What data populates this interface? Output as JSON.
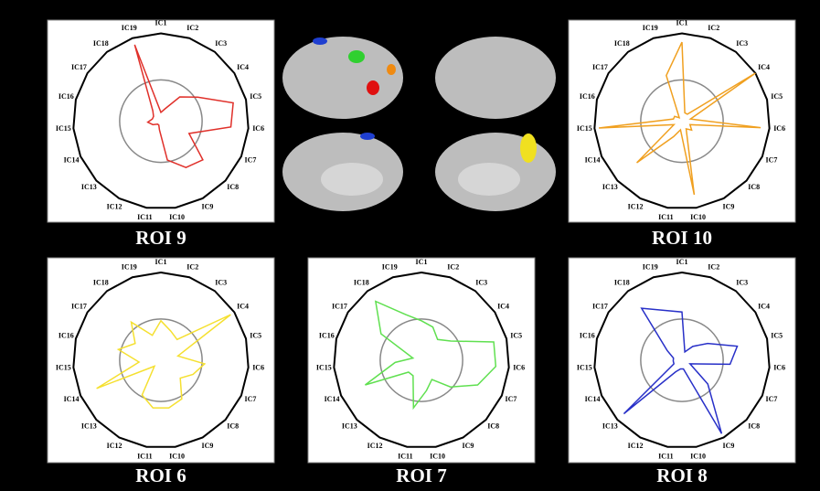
{
  "chart_data": [
    {
      "type": "radar",
      "title": "ROI 9",
      "color": "#e0302a",
      "rlim": [
        0,
        1
      ],
      "categories": [
        "IC1",
        "IC2",
        "IC3",
        "IC4",
        "IC5",
        "IC6",
        "IC7",
        "IC8",
        "IC9",
        "IC10",
        "IC11",
        "IC12",
        "IC13",
        "IC14",
        "IC15",
        "IC16",
        "IC17",
        "IC18",
        "IC19"
      ],
      "values": [
        0.1,
        0.15,
        0.35,
        0.5,
        0.85,
        0.8,
        0.35,
        0.65,
        0.6,
        0.45,
        0.1,
        0.05,
        0.05,
        0.1,
        0.15,
        0.1,
        0.1,
        0.15,
        0.92
      ]
    },
    {
      "type": "radar",
      "title": "ROI 10",
      "color": "#f0a020",
      "rlim": [
        0,
        1
      ],
      "categories": [
        "IC1",
        "IC2",
        "IC3",
        "IC4",
        "IC5",
        "IC6",
        "IC7",
        "IC8",
        "IC9",
        "IC10",
        "IC11",
        "IC12",
        "IC13",
        "IC14",
        "IC15",
        "IC16",
        "IC17",
        "IC18",
        "IC19"
      ],
      "values": [
        0.9,
        0.1,
        0.1,
        1.0,
        0.1,
        0.9,
        0.1,
        0.15,
        0.1,
        0.85,
        0.1,
        0.2,
        0.7,
        0.1,
        0.95,
        0.1,
        0.1,
        0.05,
        0.55
      ]
    },
    {
      "type": "radar",
      "title": "ROI 6",
      "color": "#f5e030",
      "rlim": [
        0,
        1
      ],
      "categories": [
        "IC1",
        "IC2",
        "IC3",
        "IC4",
        "IC5",
        "IC6",
        "IC7",
        "IC8",
        "IC9",
        "IC10",
        "IC11",
        "IC12",
        "IC13",
        "IC14",
        "IC15",
        "IC16",
        "IC17",
        "IC18",
        "IC19"
      ],
      "values": [
        0.45,
        0.35,
        0.3,
        0.95,
        0.2,
        0.5,
        0.4,
        0.3,
        0.5,
        0.55,
        0.55,
        0.45,
        0.1,
        0.8,
        0.25,
        0.5,
        0.35,
        0.55,
        0.3
      ]
    },
    {
      "type": "radar",
      "title": "ROI 7",
      "color": "#60e050",
      "rlim": [
        0,
        1
      ],
      "categories": [
        "IC1",
        "IC2",
        "IC3",
        "IC4",
        "IC5",
        "IC6",
        "IC7",
        "IC8",
        "IC9",
        "IC10",
        "IC11",
        "IC12",
        "IC13",
        "IC14",
        "IC15",
        "IC16",
        "IC17",
        "IC18",
        "IC19"
      ],
      "values": [
        0.45,
        0.4,
        0.3,
        0.4,
        0.85,
        0.85,
        0.7,
        0.45,
        0.25,
        0.35,
        0.55,
        0.2,
        0.2,
        0.7,
        0.3,
        0.1,
        0.55,
        0.85,
        0.55
      ]
    },
    {
      "type": "radar",
      "title": "ROI 8",
      "color": "#2830c8",
      "rlim": [
        0,
        1
      ],
      "categories": [
        "IC1",
        "IC2",
        "IC3",
        "IC4",
        "IC5",
        "IC6",
        "IC7",
        "IC8",
        "IC9",
        "IC10",
        "IC11",
        "IC12",
        "IC13",
        "IC14",
        "IC15",
        "IC16",
        "IC17",
        "IC18",
        "IC19"
      ],
      "values": [
        0.55,
        0.1,
        0.2,
        0.35,
        0.65,
        0.55,
        0.1,
        0.4,
        0.95,
        0.1,
        0.1,
        0.15,
        0.9,
        0.1,
        0.1,
        0.1,
        0.2,
        0.75,
        0.6
      ]
    }
  ]
}
